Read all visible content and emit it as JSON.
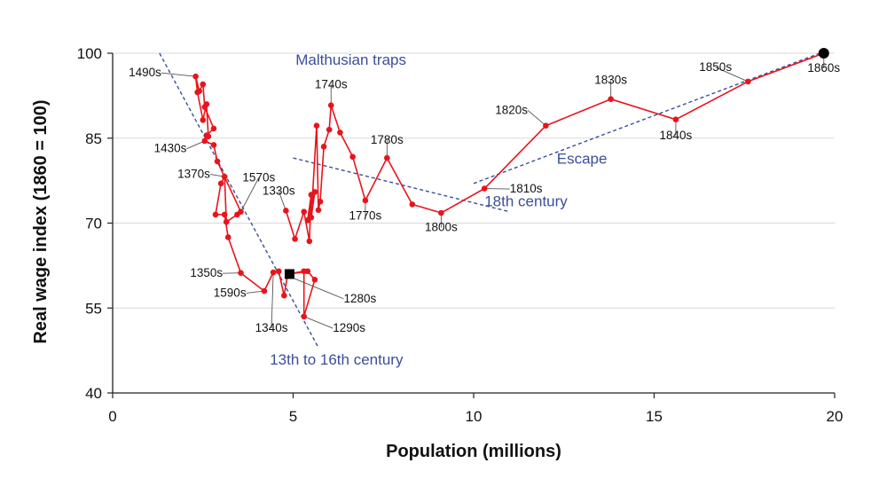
{
  "chart_data": {
    "type": "scatter",
    "title": "",
    "xlabel": "Population (millions)",
    "ylabel": "Real wage index (1860 = 100)",
    "xlim": [
      0,
      20
    ],
    "ylim": [
      40,
      100
    ],
    "xticks": [
      0,
      5,
      10,
      15,
      20
    ],
    "yticks": [
      40,
      55,
      70,
      85,
      100
    ],
    "grid": "horizontal",
    "colors": {
      "series": "#e8141c",
      "trend": "#3a4f9a",
      "endpoint": "#000000",
      "grid": "#d9d9d9"
    },
    "series": [
      {
        "points": [
          [
            4.9,
            61
          ],
          [
            5.4,
            61.5
          ],
          [
            5.6,
            60.0
          ],
          [
            5.3,
            53.5
          ],
          [
            5.3,
            61.5
          ],
          [
            4.85,
            61.0
          ],
          [
            4.75,
            57.2
          ],
          [
            4.6,
            61.5
          ],
          [
            4.45,
            61.3
          ],
          [
            4.2,
            58.0
          ],
          [
            3.55,
            61.2
          ],
          [
            3.2,
            67.5
          ],
          [
            3.1,
            71.5
          ],
          [
            2.85,
            71.5
          ],
          [
            3.0,
            77.0
          ],
          [
            3.1,
            78.2
          ],
          [
            3.15,
            70.2
          ],
          [
            3.45,
            71.5
          ],
          [
            3.55,
            72.0
          ],
          [
            2.9,
            80.9
          ],
          [
            2.8,
            83.8
          ],
          [
            2.55,
            84.5
          ],
          [
            2.6,
            85.5
          ],
          [
            2.8,
            86.7
          ],
          [
            2.55,
            90.5
          ],
          [
            2.5,
            94.5
          ],
          [
            2.4,
            93.3
          ],
          [
            2.3,
            95.9
          ],
          [
            2.35,
            93.1
          ],
          [
            2.5,
            88.2
          ],
          [
            2.6,
            91.0
          ],
          [
            2.65,
            85.3
          ]
        ]
      },
      {
        "points": [
          [
            4.8,
            72.2
          ],
          [
            5.05,
            67.2
          ],
          [
            5.3,
            72.0
          ],
          [
            5.45,
            66.8
          ],
          [
            5.5,
            75.0
          ],
          [
            5.4,
            70.5
          ],
          [
            5.6,
            75.5
          ],
          [
            5.5,
            71.0
          ],
          [
            5.65,
            87.2
          ],
          [
            5.7,
            72.3
          ],
          [
            5.75,
            73.8
          ],
          [
            5.85,
            83.5
          ],
          [
            6.0,
            86.5
          ],
          [
            6.05,
            90.8
          ],
          [
            6.3,
            86.0
          ],
          [
            6.65,
            81.7
          ],
          [
            7.0,
            74.0
          ],
          [
            7.6,
            81.5
          ],
          [
            8.3,
            73.3
          ],
          [
            9.1,
            71.8
          ],
          [
            10.3,
            76.1
          ],
          [
            12.0,
            87.2
          ],
          [
            13.8,
            91.9
          ],
          [
            15.6,
            88.3
          ],
          [
            17.6,
            95.0
          ],
          [
            19.7,
            100.0
          ]
        ]
      }
    ],
    "endpoints": [
      {
        "shape": "square",
        "x": 4.9,
        "y": 61.0
      },
      {
        "shape": "circle",
        "x": 19.7,
        "y": 100.0
      }
    ],
    "trendlines": [
      {
        "name": "13th to 16th century",
        "x": [
          1.3,
          5.7
        ],
        "y": [
          100,
          48
        ]
      },
      {
        "name": "18th century",
        "x": [
          5.0,
          11.0
        ],
        "y": [
          81.5,
          72.0
        ]
      },
      {
        "name": "Escape",
        "x": [
          10.0,
          19.8
        ],
        "y": [
          77.0,
          100.5
        ]
      }
    ],
    "annotations": [
      {
        "text": "Malthusian traps",
        "x": 6.6,
        "y": 98
      },
      {
        "text": "13th to 16th century",
        "x": 6.2,
        "y": 45
      },
      {
        "text": "18th century",
        "x": 11.45,
        "y": 73
      },
      {
        "text": "Escape",
        "x": 13.0,
        "y": 80.5
      }
    ],
    "point_labels": [
      {
        "text": "1490s",
        "x": 2.3,
        "y": 95.9,
        "lx": 1.35,
        "ly": 95.9,
        "anchor": "end"
      },
      {
        "text": "1430s",
        "x": 2.55,
        "y": 84.5,
        "lx": 2.05,
        "ly": 82.5,
        "anchor": "end"
      },
      {
        "text": "1370s",
        "x": 3.1,
        "y": 78.2,
        "lx": 2.7,
        "ly": 78.0,
        "anchor": "end"
      },
      {
        "text": "1570s",
        "x": 3.55,
        "y": 72.0,
        "lx": 4.05,
        "ly": 77.4,
        "anchor": "middle"
      },
      {
        "text": "1330s",
        "x": 4.8,
        "y": 72.2,
        "lx": 4.6,
        "ly": 75.0,
        "anchor": "middle"
      },
      {
        "text": "1350s",
        "x": 3.55,
        "y": 61.2,
        "lx": 3.05,
        "ly": 60.5,
        "anchor": "end"
      },
      {
        "text": "1590s",
        "x": 4.2,
        "y": 58.0,
        "lx": 3.7,
        "ly": 57.0,
        "anchor": "end"
      },
      {
        "text": "1340s",
        "x": 4.45,
        "y": 61.3,
        "lx": 4.4,
        "ly": 50.8,
        "anchor": "middle"
      },
      {
        "text": "1280s",
        "x": 5.0,
        "y": 60.3,
        "lx": 6.4,
        "ly": 56.0,
        "anchor": "start"
      },
      {
        "text": "1290s",
        "x": 5.3,
        "y": 53.5,
        "lx": 6.1,
        "ly": 50.8,
        "anchor": "start"
      },
      {
        "text": "1740s",
        "x": 6.05,
        "y": 90.8,
        "lx": 6.05,
        "ly": 93.8,
        "anchor": "middle"
      },
      {
        "text": "1780s",
        "x": 7.6,
        "y": 81.5,
        "lx": 7.6,
        "ly": 84.0,
        "anchor": "middle"
      },
      {
        "text": "1770s",
        "x": 7.0,
        "y": 74.0,
        "lx": 7.0,
        "ly": 70.6,
        "anchor": "middle"
      },
      {
        "text": "1800s",
        "x": 9.1,
        "y": 71.8,
        "lx": 9.1,
        "ly": 68.6,
        "anchor": "middle"
      },
      {
        "text": "1810s",
        "x": 10.3,
        "y": 76.1,
        "lx": 11.0,
        "ly": 75.4,
        "anchor": "start"
      },
      {
        "text": "1820s",
        "x": 12.0,
        "y": 87.2,
        "lx": 11.5,
        "ly": 89.3,
        "anchor": "end"
      },
      {
        "text": "1830s",
        "x": 13.8,
        "y": 91.9,
        "lx": 13.8,
        "ly": 94.6,
        "anchor": "middle"
      },
      {
        "text": "1840s",
        "x": 15.6,
        "y": 88.3,
        "lx": 15.6,
        "ly": 84.8,
        "anchor": "middle"
      },
      {
        "text": "1850s",
        "x": 17.6,
        "y": 95.0,
        "lx": 16.7,
        "ly": 96.9,
        "anchor": "middle"
      },
      {
        "text": "1860s",
        "x": 19.7,
        "y": 100.0,
        "lx": 19.7,
        "ly": 96.7,
        "anchor": "middle"
      }
    ]
  }
}
